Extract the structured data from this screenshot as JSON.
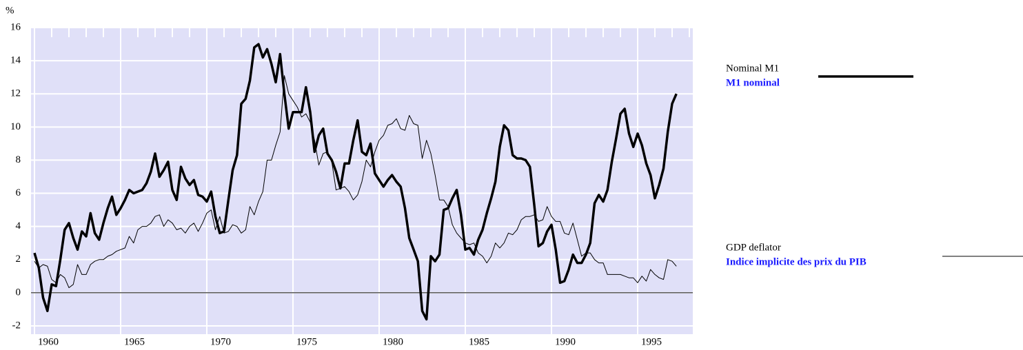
{
  "chart_data": {
    "type": "line",
    "y_label": "%",
    "x": [
      1960,
      1960.25,
      1960.5,
      1960.75,
      1961,
      1961.25,
      1961.5,
      1961.75,
      1962,
      1962.25,
      1962.5,
      1962.75,
      1963,
      1963.25,
      1963.5,
      1963.75,
      1964,
      1964.25,
      1964.5,
      1964.75,
      1965,
      1965.25,
      1965.5,
      1965.75,
      1966,
      1966.25,
      1966.5,
      1966.75,
      1967,
      1967.25,
      1967.5,
      1967.75,
      1968,
      1968.25,
      1968.5,
      1968.75,
      1969,
      1969.25,
      1969.5,
      1969.75,
      1970,
      1970.25,
      1970.5,
      1970.75,
      1971,
      1971.25,
      1971.5,
      1971.75,
      1972,
      1972.25,
      1972.5,
      1972.75,
      1973,
      1973.25,
      1973.5,
      1973.75,
      1974,
      1974.25,
      1974.5,
      1974.75,
      1975,
      1975.25,
      1975.5,
      1975.75,
      1976,
      1976.25,
      1976.5,
      1976.75,
      1977,
      1977.25,
      1977.5,
      1977.75,
      1978,
      1978.25,
      1978.5,
      1978.75,
      1979,
      1979.25,
      1979.5,
      1979.75,
      1980,
      1980.25,
      1980.5,
      1980.75,
      1981,
      1981.25,
      1981.5,
      1981.75,
      1982,
      1982.25,
      1982.5,
      1982.75,
      1983,
      1983.25,
      1983.5,
      1983.75,
      1984,
      1984.25,
      1984.5,
      1984.75,
      1985,
      1985.25,
      1985.5,
      1985.75,
      1986,
      1986.25,
      1986.5,
      1986.75,
      1987,
      1987.25,
      1987.5,
      1987.75,
      1988,
      1988.25,
      1988.5,
      1988.75,
      1989,
      1989.25,
      1989.5,
      1989.75,
      1990,
      1990.25,
      1990.5,
      1990.75,
      1991,
      1991.25,
      1991.5,
      1991.75,
      1992,
      1992.25,
      1992.5,
      1992.75,
      1993,
      1993.25,
      1993.5,
      1993.75,
      1994,
      1994.25,
      1994.5,
      1994.75,
      1995,
      1995.25,
      1995.5,
      1995.75,
      1996,
      1996.25,
      1996.5,
      1996.75,
      1997,
      1997.25
    ],
    "series": [
      {
        "name": "Nominal M1",
        "name_fr": "M1 nominal",
        "color": "#000000",
        "width": 3.5,
        "values": [
          2.4,
          1.5,
          -0.3,
          -1.1,
          0.5,
          0.4,
          2.0,
          3.8,
          4.2,
          3.3,
          2.6,
          3.7,
          3.4,
          4.8,
          3.6,
          3.2,
          4.2,
          5.1,
          5.8,
          4.7,
          5.1,
          5.6,
          6.2,
          6.0,
          6.1,
          6.2,
          6.6,
          7.3,
          8.4,
          7.0,
          7.4,
          7.9,
          6.2,
          5.6,
          7.6,
          6.9,
          6.5,
          6.8,
          5.9,
          5.8,
          5.5,
          6.1,
          4.6,
          3.6,
          3.7,
          5.6,
          7.4,
          8.3,
          11.4,
          11.7,
          12.8,
          14.8,
          15.0,
          14.2,
          14.7,
          13.8,
          12.7,
          14.4,
          12.0,
          9.9,
          10.9,
          10.9,
          10.9,
          12.4,
          10.9,
          8.5,
          9.5,
          9.9,
          8.4,
          8.0,
          7.3,
          6.3,
          7.8,
          7.8,
          9.2,
          10.4,
          8.5,
          8.3,
          9.0,
          7.2,
          6.8,
          6.4,
          6.8,
          7.1,
          6.7,
          6.4,
          5.1,
          3.3,
          2.6,
          1.9,
          -1.1,
          -1.6,
          2.2,
          1.9,
          2.3,
          5.0,
          5.1,
          5.7,
          6.2,
          4.7,
          2.6,
          2.7,
          2.3,
          3.2,
          3.8,
          4.8,
          5.7,
          6.7,
          8.8,
          10.1,
          9.8,
          8.3,
          8.1,
          8.1,
          8.0,
          7.6,
          5.3,
          2.8,
          3.0,
          3.7,
          4.1,
          2.6,
          0.6,
          0.7,
          1.4,
          2.3,
          1.8,
          1.8,
          2.3,
          3.0,
          5.4,
          5.9,
          5.5,
          6.2,
          7.9,
          9.3,
          10.8,
          11.1,
          9.6,
          8.8,
          9.6,
          8.9,
          7.8,
          7.1,
          5.7,
          6.5,
          7.5,
          9.7,
          11.4,
          12.0
        ]
      },
      {
        "name": "GDP deflator",
        "name_fr": "Indice implicite des prix du PIB",
        "color": "#000000",
        "width": 1,
        "values": [
          1.9,
          1.5,
          1.7,
          1.6,
          0.8,
          0.6,
          1.1,
          0.9,
          0.3,
          0.5,
          1.7,
          1.1,
          1.1,
          1.7,
          1.9,
          2.0,
          2.0,
          2.2,
          2.3,
          2.5,
          2.6,
          2.7,
          3.4,
          3.0,
          3.8,
          4.0,
          4.0,
          4.2,
          4.6,
          4.7,
          4.0,
          4.4,
          4.2,
          3.8,
          3.9,
          3.6,
          4.0,
          4.2,
          3.7,
          4.2,
          4.8,
          5.0,
          3.8,
          4.6,
          3.6,
          3.7,
          4.1,
          4.0,
          3.6,
          3.8,
          5.2,
          4.7,
          5.5,
          6.1,
          8.0,
          8.0,
          8.9,
          9.7,
          13.1,
          12.0,
          11.6,
          11.2,
          10.6,
          10.8,
          10.3,
          9.2,
          7.7,
          8.4,
          8.5,
          7.9,
          6.2,
          6.3,
          6.4,
          6.1,
          5.6,
          5.9,
          6.7,
          8.0,
          7.6,
          8.5,
          9.2,
          9.5,
          10.1,
          10.2,
          10.5,
          9.9,
          9.8,
          10.7,
          10.2,
          10.1,
          8.1,
          9.2,
          8.4,
          7.1,
          5.6,
          5.6,
          5.2,
          4.1,
          3.6,
          3.3,
          3.0,
          2.9,
          3.0,
          2.4,
          2.2,
          1.8,
          2.2,
          3.0,
          2.7,
          3.0,
          3.6,
          3.5,
          3.8,
          4.4,
          4.6,
          4.6,
          4.7,
          4.3,
          4.4,
          5.2,
          4.6,
          4.3,
          4.3,
          3.6,
          3.5,
          4.2,
          3.2,
          2.2,
          2.4,
          2.4,
          2.0,
          1.8,
          1.8,
          1.1,
          1.1,
          1.1,
          1.1,
          1.0,
          0.9,
          0.9,
          0.6,
          1.0,
          0.7,
          1.4,
          1.1,
          0.9,
          0.8,
          2.0,
          1.9,
          1.6
        ]
      }
    ],
    "xlim": [
      1959.8,
      1998.2
    ],
    "xticks": [
      1960,
      1965,
      1970,
      1975,
      1980,
      1985,
      1990,
      1995
    ],
    "ylim": [
      -2.5,
      16
    ],
    "yticks": [
      -2,
      0,
      2,
      4,
      6,
      8,
      10,
      12,
      14,
      16
    ],
    "grid": true,
    "plot_background": "#e0e0f8"
  }
}
